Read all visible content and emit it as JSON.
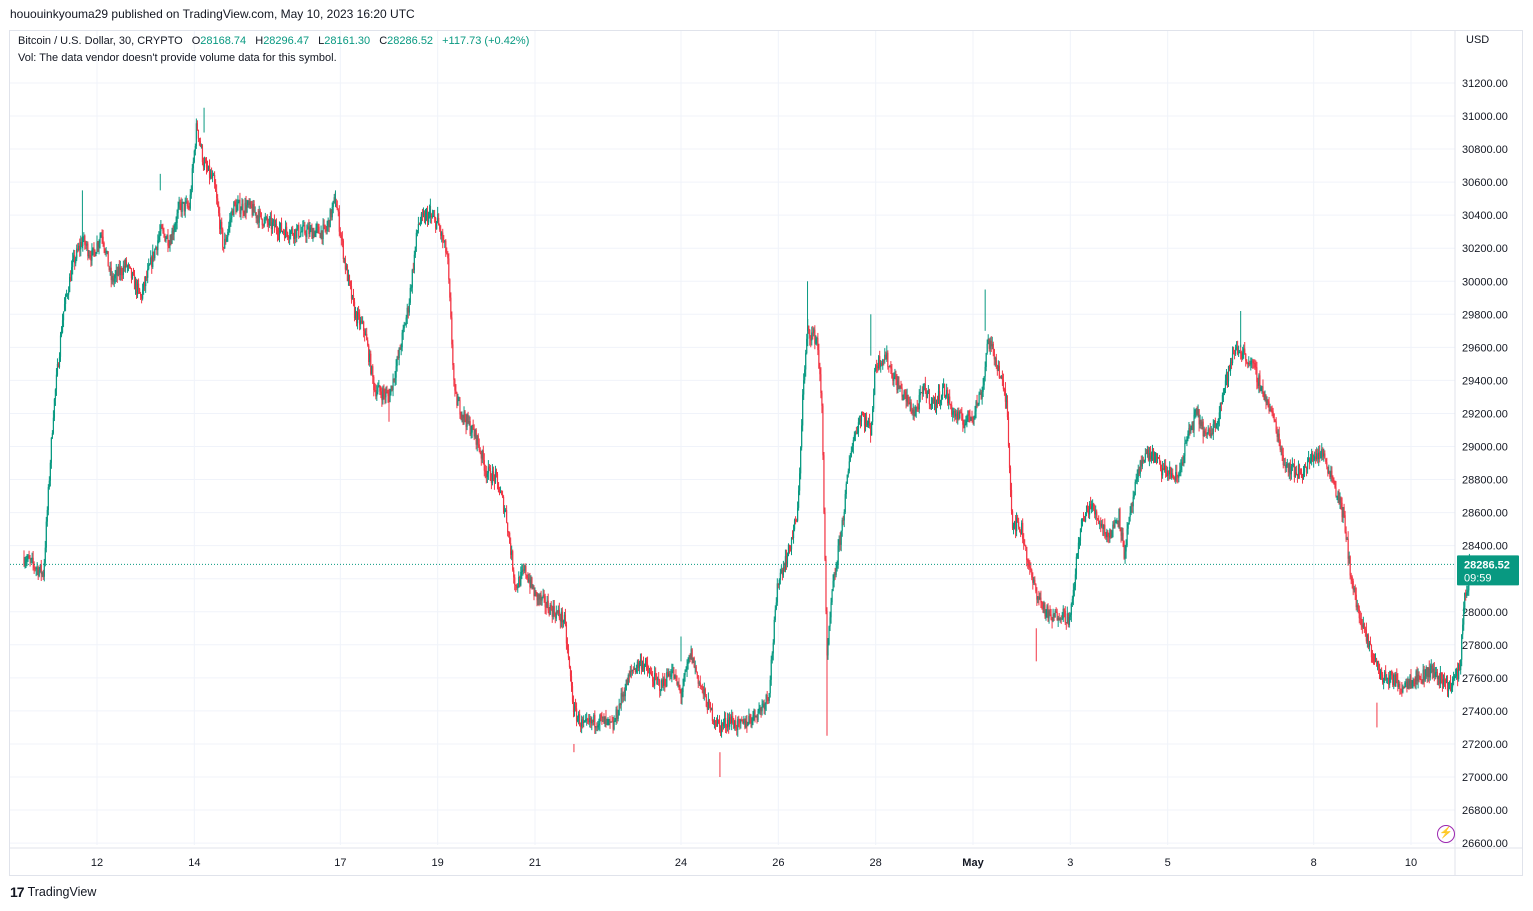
{
  "header": {
    "published_text": "hououinkyouma29 published on TradingView.com, May 10, 2023 16:20 UTC"
  },
  "legend": {
    "symbol": "Bitcoin / U.S. Dollar, 30, CRYPTO",
    "open_label": "O",
    "open_value": "28168.74",
    "high_label": "H",
    "high_value": "28296.47",
    "low_label": "L",
    "low_value": "28161.30",
    "close_label": "C",
    "close_value": "28286.52",
    "change": "+117.73 (+0.42%)",
    "volume_note": "Vol: The data vendor doesn't provide volume data for this symbol."
  },
  "axis": {
    "currency": "USD",
    "price_badge_value": "28286.52",
    "price_badge_countdown": "09:59"
  },
  "footer": {
    "brand": "TradingView",
    "logo_glyph": "17"
  },
  "icons": {
    "bolt": "lightning-icon"
  },
  "colors": {
    "up": "#089981",
    "down": "#f23645",
    "grid": "#f0f3fa",
    "axis_text": "#131722",
    "badge": "#089981",
    "bolt": "#9c27b0"
  },
  "chart_data": {
    "type": "candlestick",
    "title": "Bitcoin / U.S. Dollar, 30, CRYPTO",
    "interval": "30",
    "ylim": [
      26560,
      31320
    ],
    "grid": true,
    "y_ticks": [
      26600,
      26800,
      27000,
      27200,
      27400,
      27600,
      27800,
      28000,
      28200,
      28400,
      28600,
      28800,
      29000,
      29200,
      29400,
      29600,
      29800,
      30000,
      30200,
      30400,
      30600,
      30800,
      31000,
      31200
    ],
    "x_ticks": [
      {
        "label": "12",
        "day": 12
      },
      {
        "label": "14",
        "day": 14
      },
      {
        "label": "17",
        "day": 17
      },
      {
        "label": "19",
        "day": 19
      },
      {
        "label": "21",
        "day": 21
      },
      {
        "label": "24",
        "day": 24
      },
      {
        "label": "26",
        "day": 26
      },
      {
        "label": "28",
        "day": 28
      },
      {
        "label": "May",
        "day": 30,
        "bold": true
      },
      {
        "label": "3",
        "day": 32
      },
      {
        "label": "5",
        "day": 34
      },
      {
        "label": "8",
        "day": 37
      },
      {
        "label": "10",
        "day": 39
      }
    ],
    "last_price": 28286.52,
    "path_points": [
      [
        10.5,
        28330
      ],
      [
        10.9,
        28230
      ],
      [
        11.1,
        29200
      ],
      [
        11.3,
        29800
      ],
      [
        11.5,
        30100
      ],
      [
        11.7,
        30250
      ],
      [
        11.9,
        30150
      ],
      [
        12.1,
        30300
      ],
      [
        12.3,
        30000
      ],
      [
        12.6,
        30100
      ],
      [
        12.9,
        29900
      ],
      [
        13.1,
        30100
      ],
      [
        13.3,
        30300
      ],
      [
        13.5,
        30250
      ],
      [
        13.7,
        30450
      ],
      [
        13.9,
        30450
      ],
      [
        14.05,
        30950
      ],
      [
        14.2,
        30700
      ],
      [
        14.4,
        30600
      ],
      [
        14.6,
        30200
      ],
      [
        14.8,
        30450
      ],
      [
        15.1,
        30450
      ],
      [
        15.5,
        30350
      ],
      [
        15.9,
        30300
      ],
      [
        16.3,
        30300
      ],
      [
        16.7,
        30300
      ],
      [
        16.9,
        30500
      ],
      [
        17.1,
        30100
      ],
      [
        17.3,
        29800
      ],
      [
        17.5,
        29700
      ],
      [
        17.7,
        29350
      ],
      [
        18.0,
        29300
      ],
      [
        18.2,
        29550
      ],
      [
        18.4,
        29850
      ],
      [
        18.6,
        30350
      ],
      [
        18.8,
        30400
      ],
      [
        19.0,
        30350
      ],
      [
        19.2,
        30150
      ],
      [
        19.35,
        29300
      ],
      [
        19.6,
        29150
      ],
      [
        19.8,
        29050
      ],
      [
        20.0,
        28850
      ],
      [
        20.2,
        28800
      ],
      [
        20.4,
        28600
      ],
      [
        20.6,
        28150
      ],
      [
        20.8,
        28250
      ],
      [
        21.0,
        28100
      ],
      [
        21.2,
        28050
      ],
      [
        21.4,
        28000
      ],
      [
        21.6,
        27950
      ],
      [
        21.8,
        27400
      ],
      [
        22.0,
        27300
      ],
      [
        22.3,
        27350
      ],
      [
        22.6,
        27300
      ],
      [
        22.8,
        27500
      ],
      [
        23.0,
        27650
      ],
      [
        23.2,
        27700
      ],
      [
        23.4,
        27600
      ],
      [
        23.6,
        27550
      ],
      [
        23.8,
        27650
      ],
      [
        24.0,
        27500
      ],
      [
        24.2,
        27750
      ],
      [
        24.4,
        27550
      ],
      [
        24.6,
        27400
      ],
      [
        24.8,
        27300
      ],
      [
        25.0,
        27350
      ],
      [
        25.2,
        27300
      ],
      [
        25.4,
        27350
      ],
      [
        25.6,
        27400
      ],
      [
        25.8,
        27500
      ],
      [
        26.0,
        28200
      ],
      [
        26.2,
        28350
      ],
      [
        26.4,
        28600
      ],
      [
        26.5,
        29300
      ],
      [
        26.6,
        29700
      ],
      [
        26.8,
        29650
      ],
      [
        26.9,
        29200
      ],
      [
        27.0,
        27700
      ],
      [
        27.1,
        28100
      ],
      [
        27.3,
        28500
      ],
      [
        27.5,
        29000
      ],
      [
        27.7,
        29200
      ],
      [
        27.9,
        29100
      ],
      [
        28.0,
        29500
      ],
      [
        28.2,
        29550
      ],
      [
        28.4,
        29400
      ],
      [
        28.6,
        29300
      ],
      [
        28.8,
        29200
      ],
      [
        29.0,
        29350
      ],
      [
        29.2,
        29250
      ],
      [
        29.4,
        29350
      ],
      [
        29.6,
        29200
      ],
      [
        29.8,
        29150
      ],
      [
        30.0,
        29200
      ],
      [
        30.2,
        29350
      ],
      [
        30.3,
        29650
      ],
      [
        30.5,
        29500
      ],
      [
        30.7,
        29250
      ],
      [
        30.8,
        28550
      ],
      [
        31.0,
        28500
      ],
      [
        31.2,
        28200
      ],
      [
        31.4,
        28050
      ],
      [
        31.6,
        27950
      ],
      [
        31.8,
        28000
      ],
      [
        32.0,
        27950
      ],
      [
        32.2,
        28500
      ],
      [
        32.4,
        28650
      ],
      [
        32.6,
        28550
      ],
      [
        32.8,
        28450
      ],
      [
        33.0,
        28600
      ],
      [
        33.1,
        28350
      ],
      [
        33.3,
        28700
      ],
      [
        33.5,
        28950
      ],
      [
        33.7,
        28950
      ],
      [
        33.9,
        28850
      ],
      [
        34.0,
        28850
      ],
      [
        34.2,
        28800
      ],
      [
        34.4,
        29050
      ],
      [
        34.6,
        29200
      ],
      [
        34.8,
        29050
      ],
      [
        35.0,
        29150
      ],
      [
        35.2,
        29400
      ],
      [
        35.4,
        29600
      ],
      [
        35.6,
        29550
      ],
      [
        35.8,
        29450
      ],
      [
        36.0,
        29300
      ],
      [
        36.2,
        29150
      ],
      [
        36.4,
        28900
      ],
      [
        36.6,
        28850
      ],
      [
        36.8,
        28850
      ],
      [
        37.0,
        28950
      ],
      [
        37.2,
        28950
      ],
      [
        37.4,
        28800
      ],
      [
        37.6,
        28600
      ],
      [
        37.8,
        28150
      ],
      [
        38.0,
        27900
      ],
      [
        38.2,
        27750
      ],
      [
        38.4,
        27600
      ],
      [
        38.6,
        27600
      ],
      [
        38.8,
        27550
      ],
      [
        39.0,
        27600
      ],
      [
        39.2,
        27600
      ],
      [
        39.4,
        27650
      ],
      [
        39.6,
        27600
      ],
      [
        39.8,
        27550
      ],
      [
        40.0,
        27650
      ],
      [
        40.1,
        28100
      ],
      [
        40.2,
        28200
      ],
      [
        40.28,
        28286.52
      ]
    ],
    "extreme_wicks": [
      [
        14.2,
        30900,
        31050
      ],
      [
        13.3,
        30550,
        30650
      ],
      [
        16.9,
        30450,
        30550
      ],
      [
        18.85,
        30350,
        30500
      ],
      [
        11.7,
        30200,
        30550
      ],
      [
        18.0,
        29350,
        29150
      ],
      [
        19.0,
        30350,
        30450
      ],
      [
        21.8,
        27200,
        27150
      ],
      [
        24.0,
        27700,
        27850
      ],
      [
        24.8,
        27150,
        27000
      ],
      [
        26.6,
        29700,
        30000
      ],
      [
        27.0,
        27700,
        27250
      ],
      [
        27.9,
        29550,
        29800
      ],
      [
        30.25,
        29700,
        29950
      ],
      [
        31.3,
        27900,
        27700
      ],
      [
        35.5,
        29600,
        29820
      ],
      [
        38.3,
        27450,
        27300
      ],
      [
        40.2,
        28200,
        28350
      ]
    ]
  }
}
